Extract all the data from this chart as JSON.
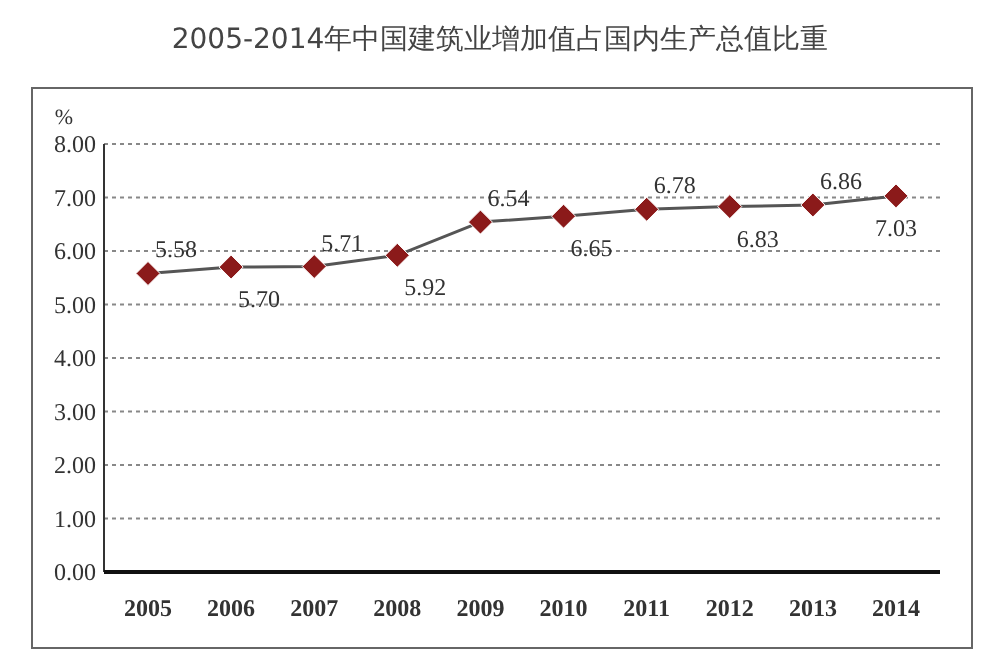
{
  "chart_data": {
    "type": "line",
    "title": "2005-2014年中国建筑业增加值占国内生产总值比重",
    "ylabel": "%",
    "categories": [
      "2005",
      "2006",
      "2007",
      "2008",
      "2009",
      "2010",
      "2011",
      "2012",
      "2013",
      "2014"
    ],
    "series": [
      {
        "color": "#8b1a1a",
        "values": [
          5.58,
          5.7,
          5.71,
          5.92,
          6.54,
          6.65,
          6.78,
          6.83,
          6.86,
          7.03
        ],
        "value_labels": [
          "5.58",
          "5.70",
          "5.71",
          "5.92",
          "6.54",
          "6.65",
          "6.78",
          "6.83",
          "6.86",
          "7.03"
        ]
      }
    ],
    "ylim": [
      0,
      8
    ],
    "yticks": [
      {
        "value": 0,
        "label": "0.00"
      },
      {
        "value": 1,
        "label": "1.00"
      },
      {
        "value": 2,
        "label": "2.00"
      },
      {
        "value": 3,
        "label": "3.00"
      },
      {
        "value": 4,
        "label": "4.00"
      },
      {
        "value": 5,
        "label": "5.00"
      },
      {
        "value": 6,
        "label": "6.00"
      },
      {
        "value": 7,
        "label": "7.00"
      },
      {
        "value": 8,
        "label": "8.00"
      }
    ],
    "grid": "y",
    "marker": "diamond",
    "line_style": "solid"
  }
}
